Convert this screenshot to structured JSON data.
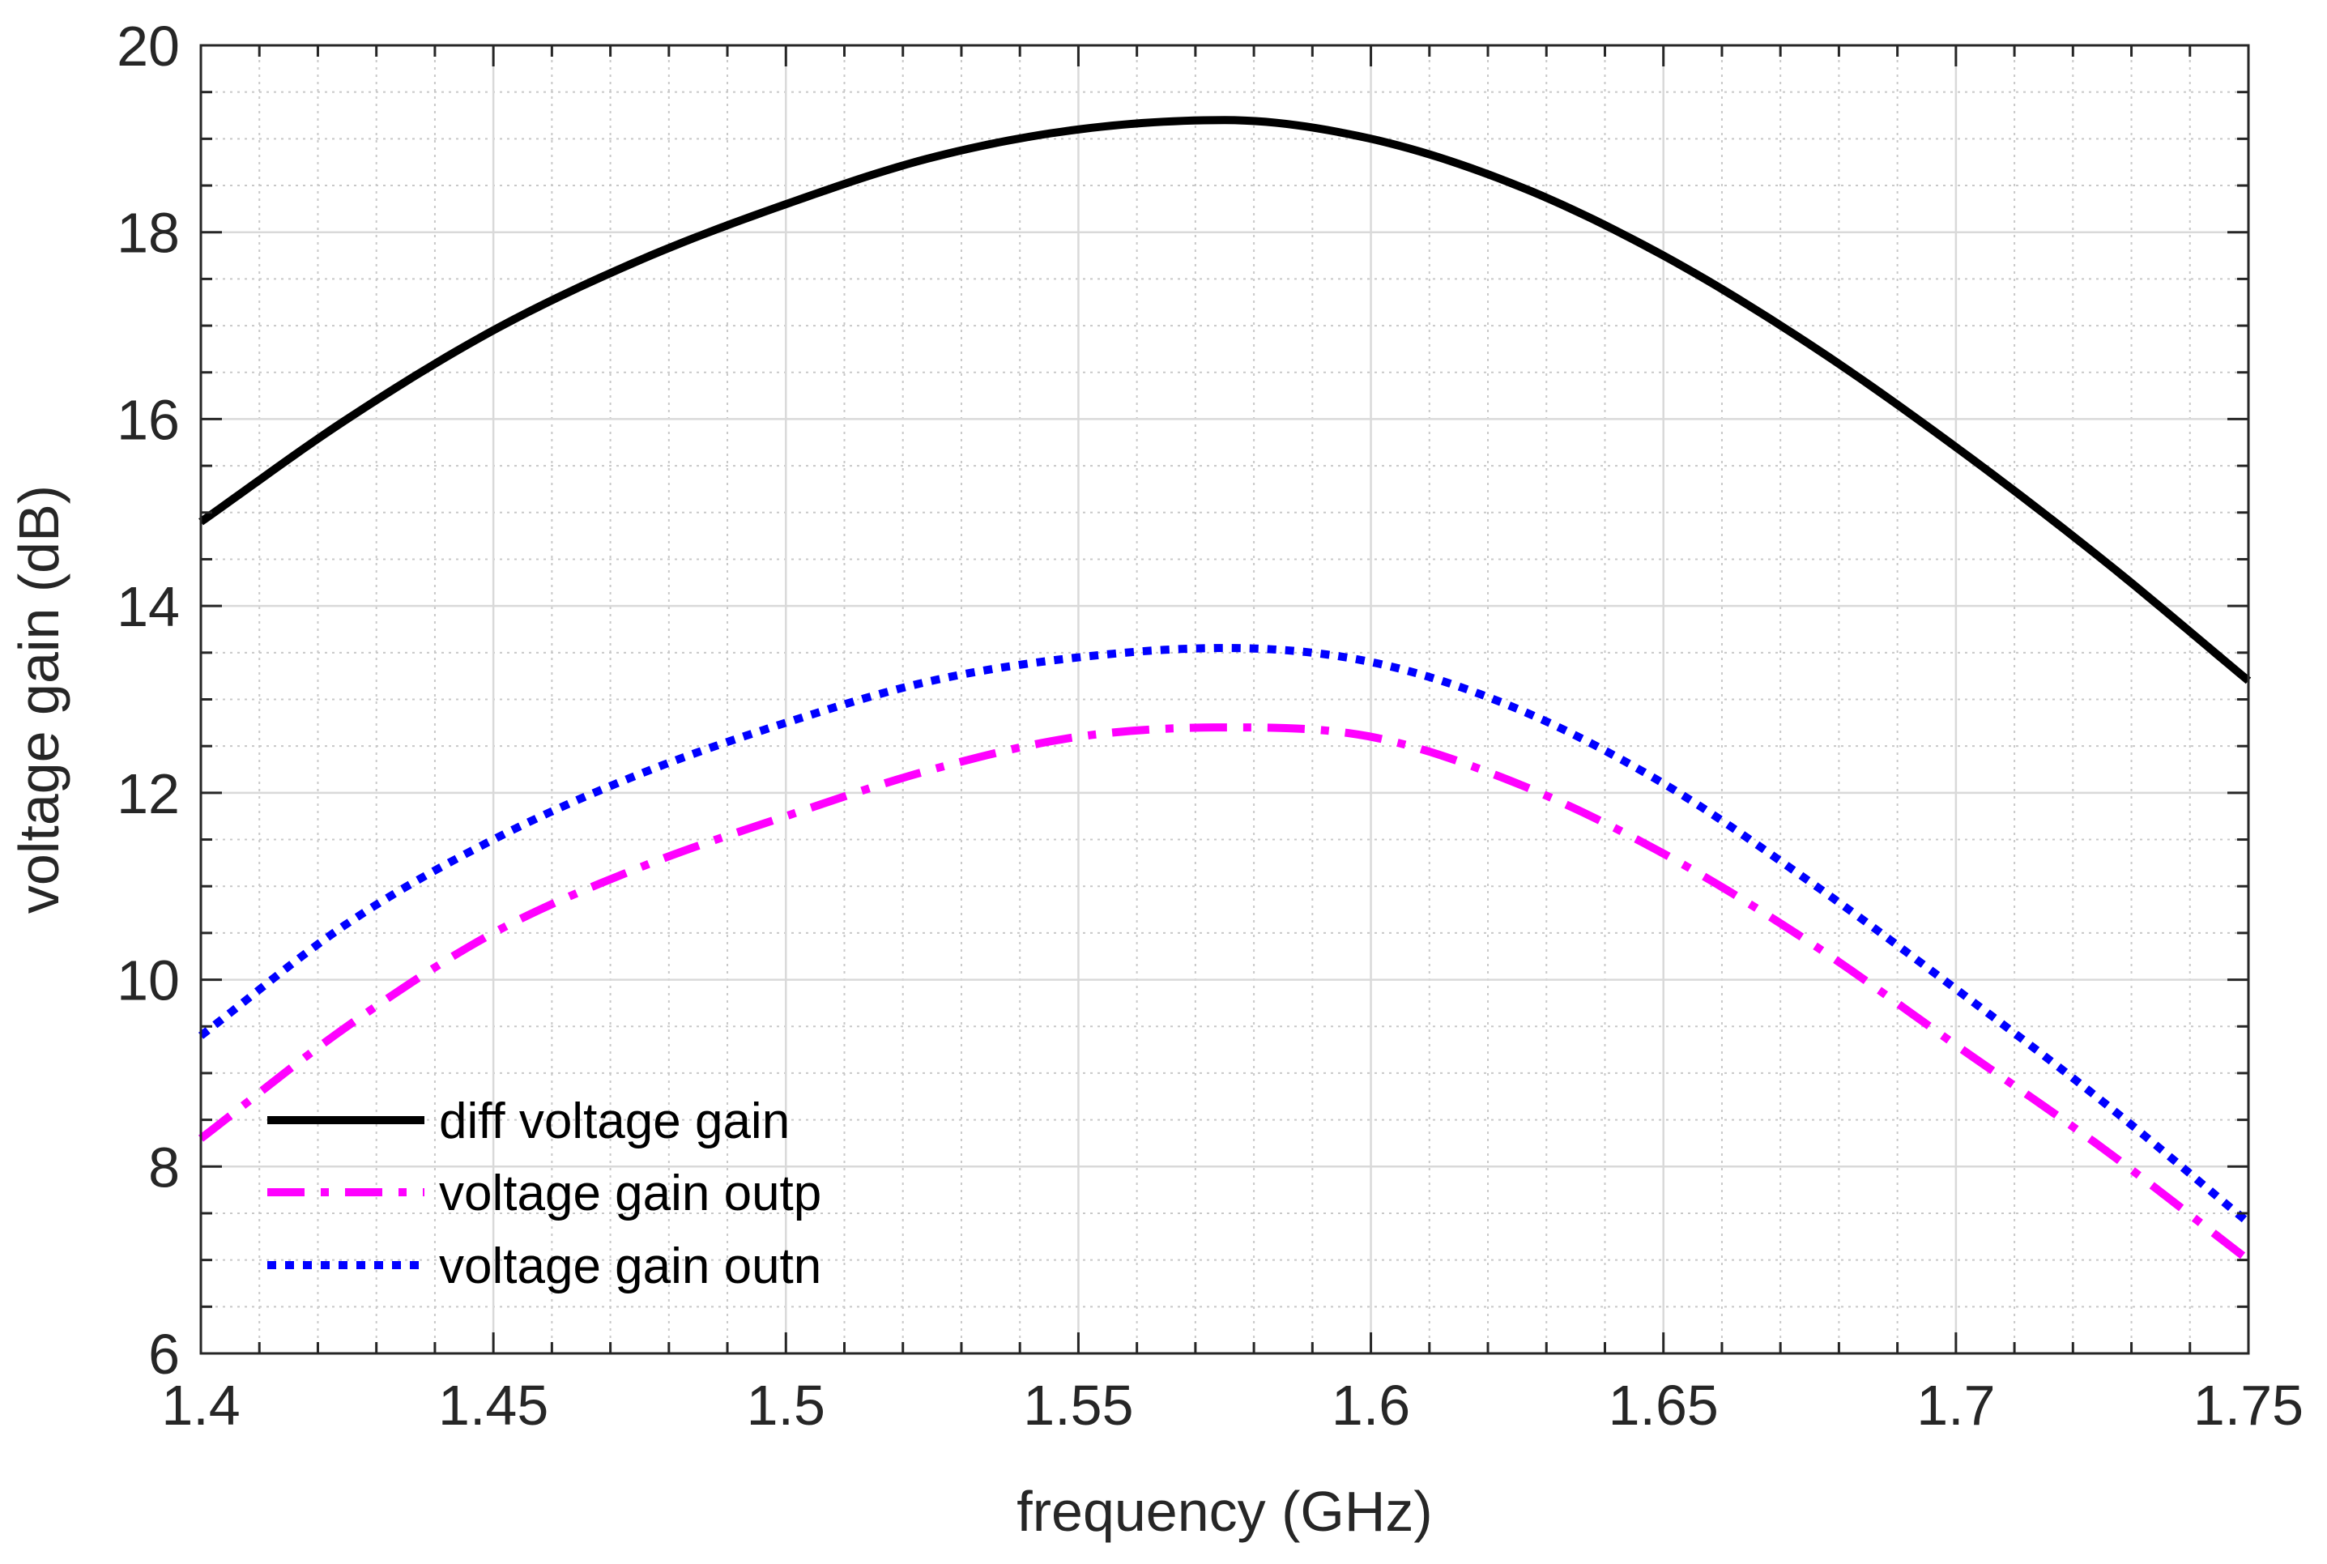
{
  "chart_data": {
    "type": "line",
    "title": "",
    "xlabel": "frequency (GHz)",
    "ylabel": "voltage gain (dB)",
    "xlim": [
      1.4,
      1.75
    ],
    "ylim": [
      6,
      20
    ],
    "grid": true,
    "minor_grid": true,
    "xticks": [
      1.4,
      1.45,
      1.5,
      1.55,
      1.6,
      1.65,
      1.7,
      1.75
    ],
    "xtick_labels": [
      "1.4",
      "1.45",
      "1.5",
      "1.55",
      "1.6",
      "1.65",
      "1.7",
      "1.75"
    ],
    "yticks": [
      6,
      8,
      10,
      12,
      14,
      16,
      18,
      20
    ],
    "ytick_labels": [
      "6",
      "8",
      "10",
      "12",
      "14",
      "16",
      "18",
      "20"
    ],
    "legend_position": "bottom-left",
    "series": [
      {
        "name": "diff voltage gain",
        "color": "#000000",
        "style": "solid",
        "x": [
          1.4,
          1.425,
          1.45,
          1.475,
          1.5,
          1.525,
          1.55,
          1.575,
          1.6,
          1.625,
          1.65,
          1.675,
          1.7,
          1.725,
          1.75
        ],
        "y": [
          14.9,
          16.0,
          16.95,
          17.7,
          18.3,
          18.8,
          19.1,
          19.2,
          19.0,
          18.5,
          17.75,
          16.8,
          15.7,
          14.5,
          13.2
        ]
      },
      {
        "name": "voltage gain outp",
        "color": "#ff00ff",
        "style": "dashdot",
        "x": [
          1.4,
          1.425,
          1.45,
          1.475,
          1.5,
          1.525,
          1.55,
          1.575,
          1.6,
          1.625,
          1.65,
          1.675,
          1.7,
          1.725,
          1.75
        ],
        "y": [
          8.3,
          9.5,
          10.5,
          11.2,
          11.75,
          12.25,
          12.6,
          12.7,
          12.6,
          12.1,
          11.35,
          10.4,
          9.3,
          8.2,
          7.0
        ]
      },
      {
        "name": "voltage gain outn",
        "color": "#0000ff",
        "style": "dotted",
        "x": [
          1.4,
          1.425,
          1.45,
          1.475,
          1.5,
          1.525,
          1.55,
          1.575,
          1.6,
          1.625,
          1.65,
          1.675,
          1.7,
          1.725,
          1.75
        ],
        "y": [
          9.4,
          10.6,
          11.5,
          12.2,
          12.75,
          13.2,
          13.45,
          13.55,
          13.4,
          12.9,
          12.1,
          11.05,
          9.9,
          8.7,
          7.4
        ]
      }
    ]
  }
}
